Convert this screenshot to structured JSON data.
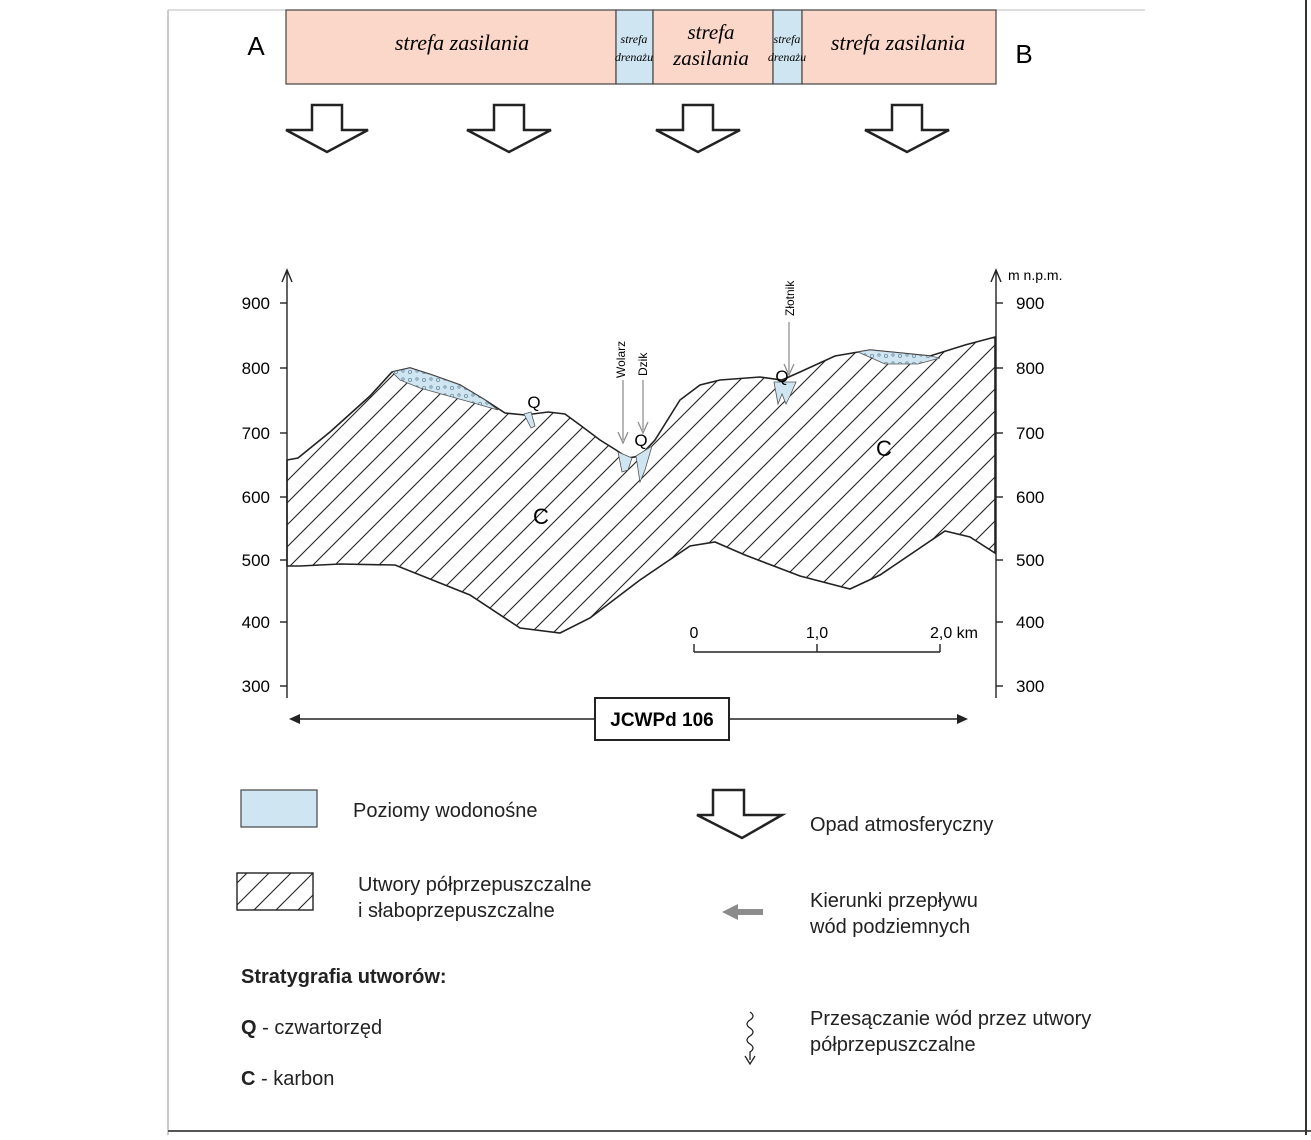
{
  "top_bar": {
    "label_left": "A",
    "label_right": "B",
    "zones": [
      {
        "text": "strefa zasilania",
        "type": "recharge"
      },
      {
        "text": "strefa drenażu",
        "line1": "strefa",
        "line2": "drenażu",
        "type": "drainage"
      },
      {
        "text": "strefa zasilania",
        "line1": "strefa",
        "line2": "zasilania",
        "type": "recharge"
      },
      {
        "text": "strefa drenażu",
        "line1": "strefa",
        "line2": "drenażu",
        "type": "drainage"
      },
      {
        "text": "strefa zasilania",
        "type": "recharge"
      }
    ],
    "recharge_color": "#fad7c8",
    "drainage_color": "#cfe6f2"
  },
  "section": {
    "axis_unit": "m n.p.m.",
    "ticks": [
      "900",
      "800",
      "700",
      "600",
      "500",
      "400",
      "300"
    ],
    "places": [
      "Wolarz",
      "Dzik",
      "Złotnik"
    ],
    "strat_labels": [
      "Q",
      "Q",
      "Q",
      "C",
      "C"
    ],
    "scale_ticks": [
      "0",
      "1,0",
      "2,0 km"
    ],
    "extent_label": "JCWPd 106"
  },
  "legend": {
    "aquifer": "Poziomy wodonośne",
    "semi_permeable": "Utwory półprzepuszczalne\ni słaboprzepuszczalne",
    "stratigraphy_title": "Stratygrafia utworów:",
    "q_code": "Q",
    "q_text": " - czwartorzęd",
    "c_code": "C",
    "c_text": " -  karbon",
    "precipitation": "Opad atmosferyczny",
    "flow_direction": "Kierunki przepływu\nwód podziemnych",
    "seepage": "Przesączanie wód przez utwory\npółprzepuszczalne"
  },
  "colors": {
    "aquifer_fill": "#cfe6f2",
    "recharge_fill": "#fad7c8",
    "arrow_gray": "#8c8c8c"
  }
}
